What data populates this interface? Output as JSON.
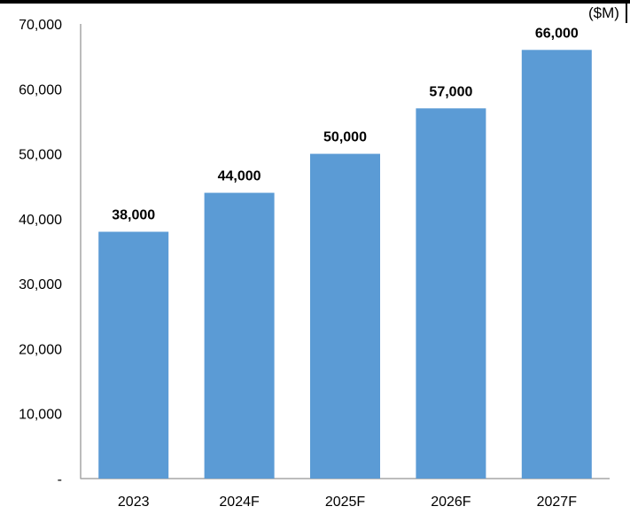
{
  "unit_label": "($M)",
  "colors": {
    "bar": "#5b9bd5",
    "axis": "#a6a6a6",
    "text": "#000000"
  },
  "chart_data": {
    "type": "bar",
    "categories": [
      "2023",
      "2024F",
      "2025F",
      "2026F",
      "2027F"
    ],
    "series": [
      {
        "values": [
          38000,
          44000,
          50000,
          57000,
          66000
        ]
      }
    ],
    "data_labels": [
      "38,000",
      "44,000",
      "50,000",
      "57,000",
      "66,000"
    ],
    "title": "",
    "xlabel": "",
    "ylabel": "",
    "ylim": [
      0,
      70000
    ],
    "yticks": [
      0,
      10000,
      20000,
      30000,
      40000,
      50000,
      60000,
      70000
    ],
    "ytick_labels": [
      "-",
      "10,000",
      "20,000",
      "30,000",
      "40,000",
      "50,000",
      "60,000",
      "70,000"
    ],
    "grid": false,
    "legend": "none"
  }
}
